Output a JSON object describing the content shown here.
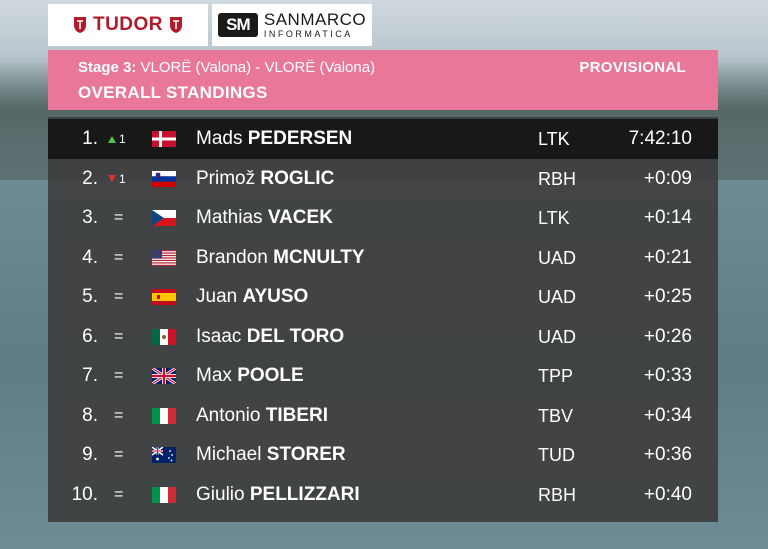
{
  "sponsors": {
    "tudor": "TUDOR",
    "sanmarco_mark": "SM",
    "sanmarco_name": "SANMARCO",
    "sanmarco_sub": "INFORMATICA"
  },
  "header": {
    "stage_label": "Stage 3:",
    "stage_route": "VLORË (Valona) - VLORË (Valona)",
    "status": "PROVISIONAL",
    "title": "OVERALL STANDINGS",
    "color": "#e8779a"
  },
  "rows": [
    {
      "pos": "1.",
      "move": "up",
      "move_num": "1",
      "flag": "DK",
      "first": "Mads",
      "last": "PEDERSEN",
      "team": "LTK",
      "time": "7:42:10"
    },
    {
      "pos": "2.",
      "move": "down",
      "move_num": "1",
      "flag": "SI",
      "first": "Primož",
      "last": "ROGLIC",
      "team": "RBH",
      "time": "+0:09"
    },
    {
      "pos": "3.",
      "move": "same",
      "move_num": "",
      "flag": "CZ",
      "first": "Mathias",
      "last": "VACEK",
      "team": "LTK",
      "time": "+0:14"
    },
    {
      "pos": "4.",
      "move": "same",
      "move_num": "",
      "flag": "US",
      "first": "Brandon",
      "last": "MCNULTY",
      "team": "UAD",
      "time": "+0:21"
    },
    {
      "pos": "5.",
      "move": "same",
      "move_num": "",
      "flag": "ES",
      "first": "Juan",
      "last": "AYUSO",
      "team": "UAD",
      "time": "+0:25"
    },
    {
      "pos": "6.",
      "move": "same",
      "move_num": "",
      "flag": "MX",
      "first": "Isaac",
      "last": "DEL TORO",
      "team": "UAD",
      "time": "+0:26"
    },
    {
      "pos": "7.",
      "move": "same",
      "move_num": "",
      "flag": "GB",
      "first": "Max",
      "last": "POOLE",
      "team": "TPP",
      "time": "+0:33"
    },
    {
      "pos": "8.",
      "move": "same",
      "move_num": "",
      "flag": "IT",
      "first": "Antonio",
      "last": "TIBERI",
      "team": "TBV",
      "time": "+0:34"
    },
    {
      "pos": "9.",
      "move": "same",
      "move_num": "",
      "flag": "AU",
      "first": "Michael",
      "last": "STORER",
      "team": "TUD",
      "time": "+0:36"
    },
    {
      "pos": "10.",
      "move": "same",
      "move_num": "",
      "flag": "IT",
      "first": "Giulio",
      "last": "PELLIZZARI",
      "team": "RBH",
      "time": "+0:40"
    }
  ]
}
